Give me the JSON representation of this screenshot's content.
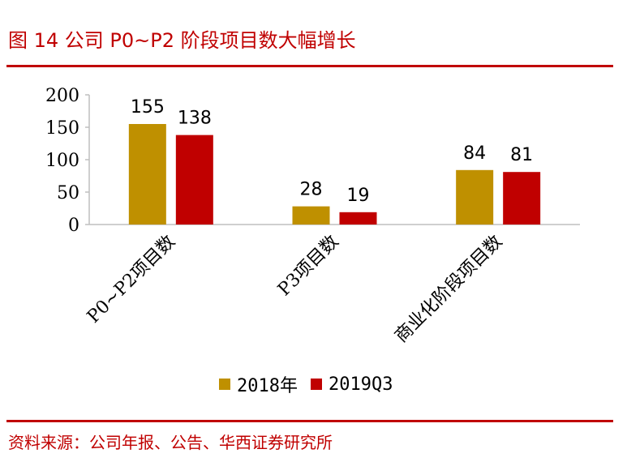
{
  "header": {
    "title": "图 14   公司 P0~P2 阶段项目数大幅增长"
  },
  "footer": {
    "source": "资料来源：公司年报、公告、华西证券研究所"
  },
  "colors": {
    "series_2018": "#BF9000",
    "series_2019Q3": "#C00000",
    "accent": "#C00000"
  },
  "chart_data": {
    "type": "bar",
    "title": "",
    "xlabel": "",
    "ylabel": "",
    "ylim": [
      0,
      200
    ],
    "yticks": [
      "200",
      "150",
      "100",
      "50",
      "0"
    ],
    "categories": [
      "P0~P2项目数",
      "P3项目数",
      "商业化阶段项目数"
    ],
    "series": [
      {
        "name": "2018年",
        "values": [
          155,
          28,
          84
        ]
      },
      {
        "name": "2019Q3",
        "values": [
          138,
          19,
          81
        ]
      }
    ],
    "grid": false,
    "legend_position": "bottom"
  }
}
